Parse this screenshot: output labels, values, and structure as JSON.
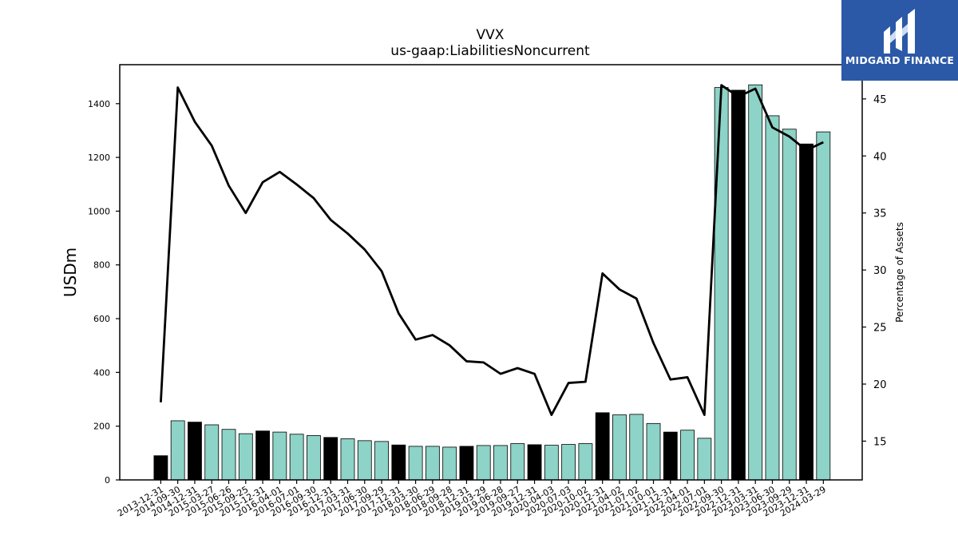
{
  "logo": {
    "text": "MIDGARD FINANCE",
    "icon": "midgard-logo-icon",
    "background": "#2b59a8"
  },
  "chart_data": {
    "type": "bar",
    "title": "VVX",
    "subtitle": "us-gaap:LiabilitiesNoncurrent",
    "ylabel": "USDm",
    "y2label": "Percentage of Assets",
    "ylim": [
      0,
      1545
    ],
    "y2lim": [
      11.6,
      48.0
    ],
    "yticks": [
      0,
      200,
      400,
      600,
      800,
      1000,
      1200,
      1400
    ],
    "y2ticks": [
      15,
      20,
      25,
      30,
      35,
      40,
      45
    ],
    "colors": {
      "bar_default": "#8dd3c7",
      "bar_highlight": "#000000",
      "line": "#000000"
    },
    "categories": [
      "2013-12-31",
      "2014-09-30",
      "2014-12-31",
      "2015-03-27",
      "2015-06-26",
      "2015-09-25",
      "2015-12-31",
      "2016-04-01",
      "2016-07-01",
      "2016-09-30",
      "2016-12-31",
      "2017-03-31",
      "2017-06-30",
      "2017-09-29",
      "2017-12-31",
      "2018-03-30",
      "2018-06-29",
      "2018-09-28",
      "2018-12-31",
      "2019-03-29",
      "2019-06-28",
      "2019-09-27",
      "2019-12-31",
      "2020-04-03",
      "2020-07-03",
      "2020-10-02",
      "2020-12-31",
      "2021-04-02",
      "2021-07-02",
      "2021-10-01",
      "2021-12-31",
      "2022-04-01",
      "2022-07-01",
      "2022-09-30",
      "2022-12-31",
      "2023-03-31",
      "2023-06-30",
      "2023-09-29",
      "2023-12-31",
      "2024-03-29"
    ],
    "series": [
      {
        "kind": "bar",
        "values": [
          90,
          220,
          215,
          205,
          188,
          172,
          182,
          178,
          170,
          165,
          158,
          153,
          146,
          143,
          130,
          125,
          125,
          122,
          125,
          128,
          128,
          135,
          131,
          129,
          132,
          135,
          250,
          242,
          244,
          210,
          178,
          185,
          155,
          1460,
          1450,
          1470,
          1355,
          1305,
          1250,
          1295
        ],
        "highlight": [
          true,
          false,
          true,
          false,
          false,
          false,
          true,
          false,
          false,
          false,
          true,
          false,
          false,
          false,
          true,
          false,
          false,
          false,
          true,
          false,
          false,
          false,
          true,
          false,
          false,
          false,
          true,
          false,
          false,
          false,
          true,
          false,
          false,
          false,
          true,
          false,
          false,
          false,
          true,
          false
        ]
      },
      {
        "kind": "line",
        "axis": "right",
        "values": [
          18.4,
          46.0,
          43.0,
          40.9,
          37.4,
          35.0,
          37.7,
          38.6,
          37.5,
          36.3,
          34.4,
          33.2,
          31.8,
          29.9,
          26.2,
          23.9,
          24.3,
          23.4,
          22.0,
          21.9,
          20.9,
          21.4,
          20.9,
          17.3,
          20.1,
          20.2,
          29.7,
          28.3,
          27.5,
          23.6,
          20.4,
          20.6,
          17.3,
          46.2,
          45.2,
          45.9,
          42.5,
          41.7,
          40.5,
          41.2
        ]
      }
    ]
  }
}
